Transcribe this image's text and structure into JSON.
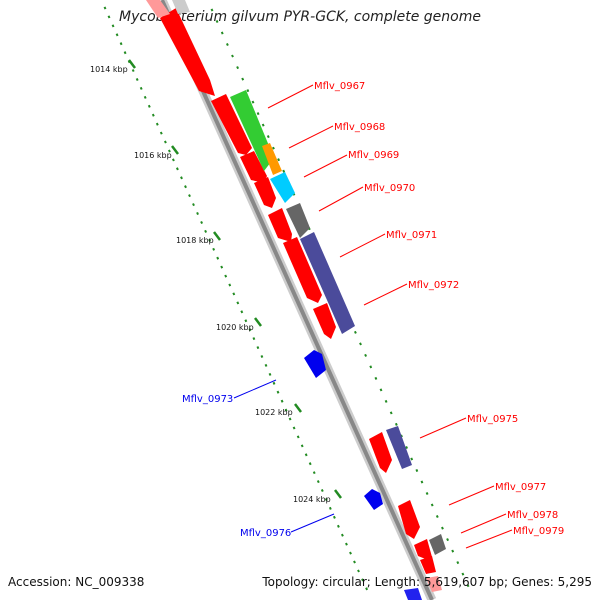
{
  "title": "Mycobacterium gilvum PYR-GCK, complete genome",
  "footer": {
    "accession": "Accession: NC_009338",
    "summary": "Topology: circular; Length: 5,619,607 bp; Genes: 5,295"
  },
  "ticks": [
    "1014 kbp",
    "1016 kbp",
    "1018 kbp",
    "1020 kbp",
    "1022 kbp",
    "1024 kbp"
  ],
  "colors": {
    "forward_gene": "#ff0000",
    "reverse_gene": "#0000ee",
    "backbone": "#888888",
    "tick": "#228b22",
    "cog_green": "#33cc33",
    "cog_orange": "#ff9900",
    "cog_cyan": "#00ccff",
    "cog_gray": "#666666",
    "cog_purple": "#4b4b9b"
  },
  "gene_labels": [
    {
      "text": "Mflv_0967",
      "strand": "forward"
    },
    {
      "text": "Mflv_0968",
      "strand": "forward"
    },
    {
      "text": "Mflv_0969",
      "strand": "forward"
    },
    {
      "text": "Mflv_0970",
      "strand": "forward"
    },
    {
      "text": "Mflv_0971",
      "strand": "forward"
    },
    {
      "text": "Mflv_0972",
      "strand": "forward"
    },
    {
      "text": "Mflv_0973",
      "strand": "reverse"
    },
    {
      "text": "Mflv_0975",
      "strand": "forward"
    },
    {
      "text": "Mflv_0976",
      "strand": "reverse"
    },
    {
      "text": "Mflv_0977",
      "strand": "forward"
    },
    {
      "text": "Mflv_0978",
      "strand": "forward"
    },
    {
      "text": "Mflv_0979",
      "strand": "forward"
    }
  ]
}
